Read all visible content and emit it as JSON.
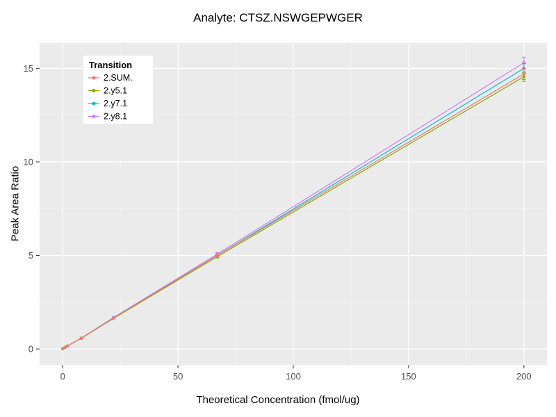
{
  "chart_data": {
    "type": "line",
    "title": "Analyte: CTSZ.NSWGEPWGER",
    "xlabel": "Theoretical Concentration (fmol/ug)",
    "ylabel": "Peak Area Ratio",
    "legend_title": "Transition",
    "x": [
      0,
      1,
      2,
      8,
      22,
      67,
      200
    ],
    "series": [
      {
        "name": "2.SUM.",
        "color": "#F8766D",
        "values": [
          0.02,
          0.08,
          0.16,
          0.57,
          1.65,
          5.0,
          14.7
        ],
        "yerr": [
          0,
          0,
          0,
          0,
          0,
          0.07,
          0.3
        ]
      },
      {
        "name": "2.y5.1",
        "color": "#7CAE00",
        "values": [
          0.02,
          0.08,
          0.16,
          0.56,
          1.63,
          4.93,
          14.55
        ],
        "yerr": [
          0,
          0,
          0,
          0,
          0,
          0.07,
          0.25
        ]
      },
      {
        "name": "2.y7.1",
        "color": "#00BFC4",
        "values": [
          0.02,
          0.08,
          0.16,
          0.57,
          1.66,
          5.0,
          15.0
        ],
        "yerr": [
          0,
          0,
          0,
          0,
          0,
          0.07,
          0.25
        ]
      },
      {
        "name": "2.y8.1",
        "color": "#C77CFF",
        "values": [
          0.02,
          0.08,
          0.16,
          0.58,
          1.68,
          5.07,
          15.3
        ],
        "yerr": [
          0,
          0,
          0,
          0,
          0,
          0.09,
          0.3
        ]
      }
    ],
    "xlim": [
      -10,
      210
    ],
    "ylim": [
      -0.85,
      16.35
    ],
    "xticks": [
      0,
      50,
      100,
      150,
      200
    ],
    "yticks": [
      0,
      5,
      10,
      15
    ],
    "xminor": [
      25,
      75,
      125,
      175
    ],
    "yminor": [
      2.5,
      7.5,
      12.5
    ],
    "panel_bg": "#EBEBEB",
    "grid_major": "#FFFFFF",
    "grid_minor": "#F5F5F5",
    "tick_color": "#333333",
    "tick_label_color": "#4D4D4D"
  }
}
